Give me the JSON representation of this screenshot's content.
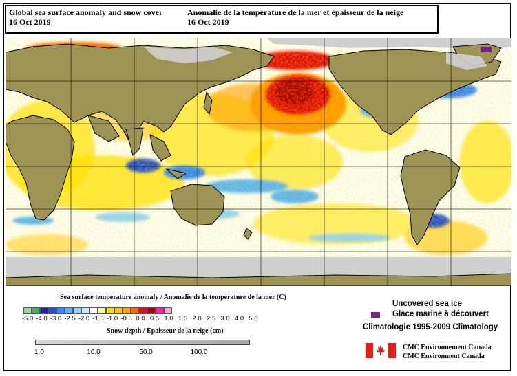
{
  "title": {
    "en_line1": "Global sea surface anomaly and snow cover",
    "en_line2": "16 Oct 2019",
    "fr_line1": "Anomalie de la température de la mer et épaisseur de la neige",
    "fr_line2": "16 Oct 2019"
  },
  "map": {
    "colors": {
      "land": "#9c9355",
      "ice": "#cfcfcf",
      "ocean": "#ffffff",
      "warm_yellow": "#ffe100",
      "warm_orange": "#ff9800",
      "warm_red": "#e01010",
      "dark_red": "#b00000",
      "cool_blue": "#1e88ff",
      "light_blue": "#8fd4ff",
      "purple": "#7a1f8f",
      "grid": "#000000"
    }
  },
  "legend": {
    "sst_title": "Sea surface temperature anomaly / Anomalie de la température de la mer (C)",
    "sst_colors": [
      "#9cd69c",
      "#3fae60",
      "#2020a8",
      "#2050d8",
      "#2f88ff",
      "#55b4ff",
      "#8fd4ff",
      "#bfeaff",
      "#ffffff",
      "#fff6a0",
      "#ffe100",
      "#ffc400",
      "#ffa000",
      "#ff6a00",
      "#e01010",
      "#b00000",
      "#ff20a8",
      "#f7a8d8"
    ],
    "sst_ticks": [
      "-5.0",
      "-4.0",
      "-3.0",
      "-2.5",
      "-2.0",
      "-1.5",
      "-1.0",
      "-0.5",
      "0.0",
      "0.5",
      "1.0",
      "1.5",
      "2.0",
      "2.5",
      "3.0",
      "4.0",
      "5.0"
    ],
    "snow_title": "Snow depth / Épaisseur de la neige (cm)",
    "snow_ticks": [
      "1.0",
      "10.0",
      "50.0",
      "100.0"
    ],
    "ice_en": "Uncovered sea ice",
    "ice_fr": "Glace marine à découvert",
    "climatology": "Climatologie 1995-2009 Climatology",
    "agency_fr": "CMC Environnement Canada",
    "agency_en": "CMC Environment Canada"
  }
}
